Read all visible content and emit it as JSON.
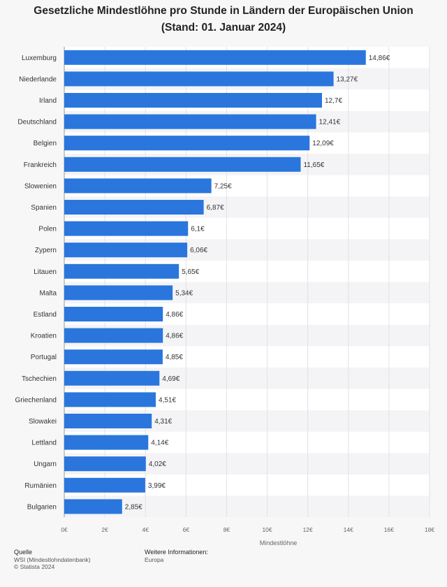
{
  "chart_data": {
    "type": "bar",
    "orientation": "horizontal",
    "title": "Gesetzliche Mindestlöhne pro Stunde in Ländern der Europäischen Union (Stand: 01. Januar 2024)",
    "xlabel": "Mindestlöhne",
    "ylabel": "",
    "xlim": [
      0,
      18
    ],
    "ticks": [
      0,
      2,
      4,
      6,
      8,
      10,
      12,
      14,
      16,
      18
    ],
    "tick_labels": [
      "0€",
      "2€",
      "4€",
      "6€",
      "8€",
      "10€",
      "12€",
      "14€",
      "16€",
      "18€"
    ],
    "categories": [
      "Luxemburg",
      "Niederlande",
      "Irland",
      "Deutschland",
      "Belgien",
      "Frankreich",
      "Slowenien",
      "Spanien",
      "Polen",
      "Zypern",
      "Litauen",
      "Malta",
      "Estland",
      "Kroatien",
      "Portugal",
      "Tschechien",
      "Griechenland",
      "Slowakei",
      "Lettland",
      "Ungarn",
      "Rumänien",
      "Bulgarien"
    ],
    "values": [
      14.86,
      13.27,
      12.7,
      12.41,
      12.09,
      11.65,
      7.25,
      6.87,
      6.1,
      6.06,
      5.65,
      5.34,
      4.86,
      4.86,
      4.85,
      4.69,
      4.51,
      4.31,
      4.14,
      4.02,
      3.99,
      2.85
    ],
    "value_labels": [
      "14,86€",
      "13,27€",
      "12,7€",
      "12,41€",
      "12,09€",
      "11,65€",
      "7,25€",
      "6,87€",
      "6,1€",
      "6,06€",
      "5,65€",
      "5,34€",
      "4,86€",
      "4,86€",
      "4,85€",
      "4,69€",
      "4,51€",
      "4,31€",
      "4,14€",
      "4,02€",
      "3,99€",
      "2,85€"
    ],
    "bar_color": "#2a76dd",
    "grid": true
  },
  "footer": {
    "source_heading": "Quelle",
    "source_line1": "WSI (Mindestlohndatenbank)",
    "source_line2": "© Statista 2024",
    "info_heading": "Weitere Informationen:",
    "info_line1": "Europa"
  }
}
